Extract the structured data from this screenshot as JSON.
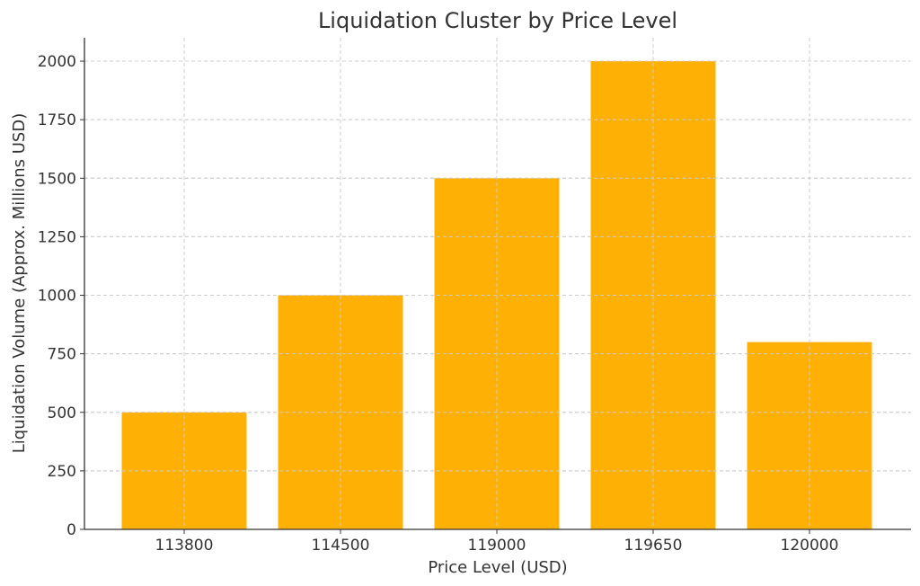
{
  "chart_data": {
    "type": "bar",
    "title": "Liquidation Cluster by Price Level",
    "xlabel": "Price Level (USD)",
    "ylabel": "Liquidation Volume (Approx. Millions USD)",
    "categories": [
      "113800",
      "114500",
      "119000",
      "119650",
      "120000"
    ],
    "values": [
      500,
      1000,
      1500,
      2000,
      800
    ],
    "ylim": [
      0,
      2100
    ],
    "yticks": [
      0,
      250,
      500,
      750,
      1000,
      1250,
      1500,
      1750,
      2000
    ],
    "grid": true,
    "bar_color": "#FFAE00"
  }
}
